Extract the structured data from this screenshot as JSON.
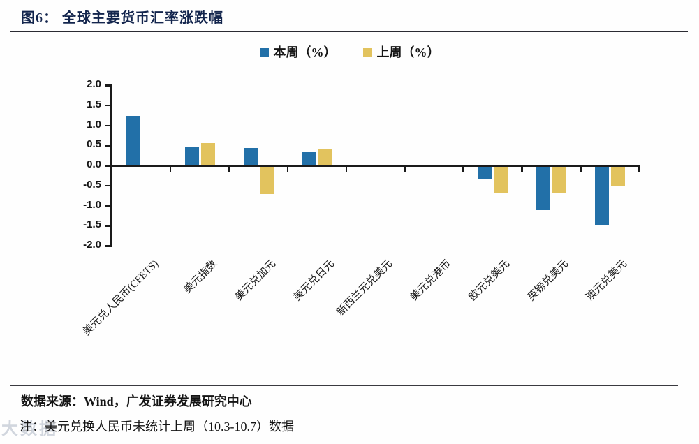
{
  "header": {
    "title": "图6：  全球主要货币汇率涨跌幅"
  },
  "chart_data": {
    "type": "bar",
    "title": "全球主要货币汇率涨跌幅",
    "categories": [
      "美元兑人民币(CFETS)",
      "美元指数",
      "美元兑加元",
      "美元兑日元",
      "新西兰元兑美元",
      "美元兑港币",
      "欧元兑美元",
      "英镑兑美元",
      "澳元兑美元"
    ],
    "series": [
      {
        "name": "本周（%）",
        "color": "#2270A8",
        "values": [
          1.23,
          0.46,
          0.43,
          0.33,
          0.0,
          0.0,
          -0.33,
          -1.12,
          -1.49
        ]
      },
      {
        "name": "上周（%）",
        "color": "#E2C35E",
        "values": [
          null,
          0.55,
          -0.71,
          0.41,
          0.0,
          0.0,
          -0.68,
          -0.68,
          -0.51
        ]
      }
    ],
    "ylim": [
      -2.0,
      2.0
    ],
    "yticks": [
      "2.0",
      "1.5",
      "1.0",
      "0.5",
      "0.0",
      "-0.5",
      "-1.0",
      "-1.5",
      "-2.0"
    ],
    "grid": false,
    "legend_position": "top",
    "axis_color": "#1a1a1a"
  },
  "footer": {
    "source": "数据来源：Wind，广发证券发展研究中心",
    "note": "注：美元兑换人民币未统计上周（10.3-10.7）数据",
    "watermark": "大数据"
  },
  "colors": {
    "title_navy": "#13254d",
    "this_week_blue": "#2270A8",
    "last_week_yellow": "#E2C35E"
  }
}
